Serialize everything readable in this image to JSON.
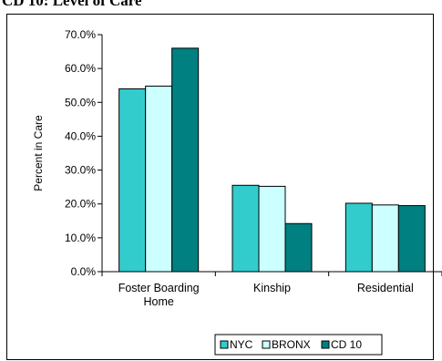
{
  "page": {
    "title": "CD 10: Level of Care"
  },
  "colors": {
    "NYC": "#33CCCC",
    "BRONX": "#CCFFFF",
    "CD 10": "#008080",
    "bar_stroke": "#000000"
  },
  "chart_data": {
    "type": "bar",
    "title": "",
    "xlabel": "",
    "ylabel": "Percent in Care",
    "ylim": [
      0,
      70
    ],
    "yticks": [
      "0.0%",
      "10.0%",
      "20.0%",
      "30.0%",
      "40.0%",
      "50.0%",
      "60.0%",
      "70.0%"
    ],
    "categories": [
      [
        "Foster Boarding",
        "Home"
      ],
      [
        "Kinship"
      ],
      [
        "Residential"
      ]
    ],
    "series": [
      {
        "name": "NYC",
        "values": [
          54.0,
          25.5,
          20.2
        ]
      },
      {
        "name": "BRONX",
        "values": [
          54.8,
          25.2,
          19.7
        ]
      },
      {
        "name": "CD 10",
        "values": [
          66.0,
          14.2,
          19.5
        ]
      }
    ],
    "grid": false,
    "legend": "bottom-right"
  }
}
